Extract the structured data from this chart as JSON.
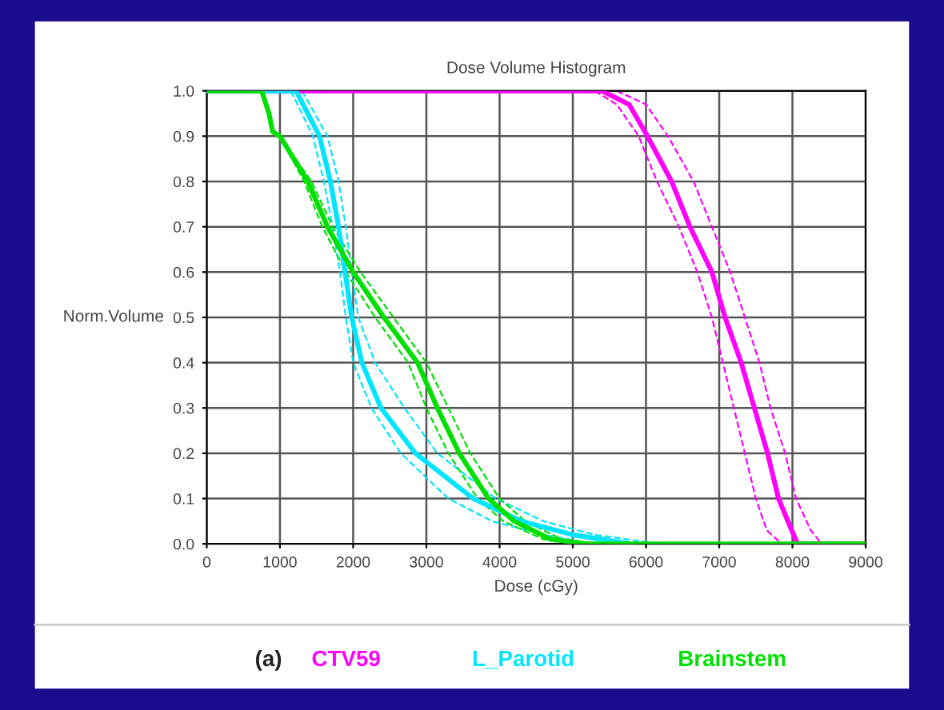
{
  "chart_data": {
    "type": "line",
    "title": "Dose Volume Histogram",
    "xlabel": "Dose (cGy)",
    "ylabel": "Norm.Volume",
    "xlim": [
      0,
      9000
    ],
    "xticks": [
      0,
      1000,
      2000,
      3000,
      4000,
      5000,
      6000,
      7000,
      8000,
      9000
    ],
    "ylim": [
      0,
      1
    ],
    "yticks": [
      {
        "value": 0,
        "label": "0.0"
      },
      0.1,
      0.2,
      0.3,
      0.4,
      0.5,
      0.6,
      0.7,
      0.8,
      0.9,
      {
        "value": 1,
        "label": "1.0"
      }
    ],
    "grid": true,
    "legend": "bottom",
    "annotations": [
      "(a)"
    ],
    "series": [
      {
        "name": "CTV59",
        "color": "#ff00ff",
        "x": [
          0,
          5400,
          5770,
          6020,
          6350,
          6600,
          6900,
          7080,
          7300,
          7480,
          7660,
          7810,
          7990,
          8070,
          9000
        ],
        "values": [
          1.0,
          1.0,
          0.97,
          0.9,
          0.8,
          0.7,
          0.6,
          0.5,
          0.4,
          0.3,
          0.2,
          0.1,
          0.03,
          0.0,
          0.0
        ]
      },
      {
        "color": "#ff00ff",
        "line_style": "dashed",
        "x": [
          5300,
          5600,
          5900,
          6150,
          6450,
          6700,
          6900,
          7050,
          7200,
          7350,
          7500,
          7650,
          7850,
          8000
        ],
        "values": [
          1.0,
          0.97,
          0.9,
          0.8,
          0.7,
          0.6,
          0.5,
          0.4,
          0.3,
          0.2,
          0.1,
          0.03,
          0.0,
          0.0
        ]
      },
      {
        "color": "#ff00ff",
        "line_style": "dashed",
        "x": [
          5600,
          6000,
          6300,
          6650,
          6900,
          7150,
          7350,
          7550,
          7700,
          7900,
          8050,
          8250,
          8400
        ],
        "values": [
          1.0,
          0.97,
          0.9,
          0.8,
          0.7,
          0.6,
          0.5,
          0.4,
          0.3,
          0.2,
          0.1,
          0.03,
          0.0
        ]
      },
      {
        "name": "L_Parotid",
        "color": "#00e5ff",
        "x": [
          0,
          1220,
          1540,
          1690,
          1800,
          1890,
          1980,
          2120,
          2380,
          2850,
          3640,
          4300,
          5000,
          5800
        ],
        "values": [
          1.0,
          1.0,
          0.9,
          0.8,
          0.7,
          0.6,
          0.5,
          0.4,
          0.3,
          0.2,
          0.1,
          0.05,
          0.02,
          0.0
        ]
      },
      {
        "color": "#00e5ff",
        "line_style": "dashed",
        "x": [
          1150,
          1450,
          1600,
          1720,
          1820,
          1900,
          2000,
          2250,
          2650,
          3300,
          3900,
          4600,
          5300
        ],
        "values": [
          1.0,
          0.9,
          0.8,
          0.7,
          0.6,
          0.5,
          0.4,
          0.3,
          0.2,
          0.1,
          0.05,
          0.02,
          0.0
        ]
      },
      {
        "color": "#00e5ff",
        "line_style": "dashed",
        "x": [
          1300,
          1650,
          1800,
          1900,
          1980,
          2070,
          2300,
          2700,
          3150,
          3950,
          4600,
          5300,
          6200
        ],
        "values": [
          1.0,
          0.9,
          0.8,
          0.7,
          0.6,
          0.5,
          0.4,
          0.3,
          0.2,
          0.1,
          0.05,
          0.02,
          0.0
        ]
      },
      {
        "name": "Brainstem",
        "color": "#00e000",
        "x": [
          0,
          750,
          850,
          900,
          1000,
          1380,
          1650,
          2000,
          2420,
          2880,
          3150,
          3450,
          3850,
          4200,
          4700,
          5200,
          9000
        ],
        "values": [
          1.0,
          1.0,
          0.95,
          0.91,
          0.9,
          0.8,
          0.7,
          0.6,
          0.5,
          0.4,
          0.3,
          0.2,
          0.1,
          0.05,
          0.01,
          0.0,
          0.0
        ]
      },
      {
        "color": "#00e000",
        "line_style": "dashed",
        "x": [
          1000,
          1330,
          1580,
          1900,
          2300,
          2750,
          3000,
          3300,
          3700,
          4050,
          4600,
          5000
        ],
        "values": [
          0.9,
          0.8,
          0.7,
          0.6,
          0.5,
          0.4,
          0.3,
          0.2,
          0.1,
          0.05,
          0.01,
          0.0
        ]
      },
      {
        "color": "#00e000",
        "line_style": "dashed",
        "x": [
          1000,
          1430,
          1720,
          2100,
          2550,
          3000,
          3300,
          3600,
          4000,
          4350,
          4850,
          5300
        ],
        "values": [
          0.9,
          0.8,
          0.7,
          0.6,
          0.5,
          0.4,
          0.3,
          0.2,
          0.1,
          0.05,
          0.01,
          0.0
        ]
      }
    ]
  }
}
